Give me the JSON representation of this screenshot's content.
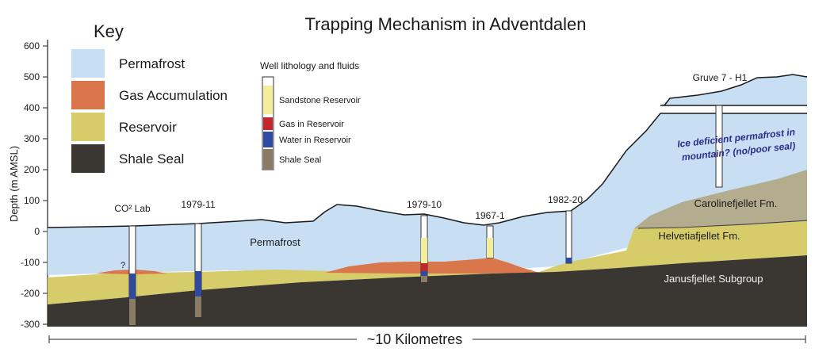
{
  "title": "Trapping Mechanism in Adventdalen",
  "y_axis": {
    "label": "Depth (m AMSL)",
    "ticks": [
      "600",
      "500",
      "400",
      "300",
      "200",
      "100",
      "0",
      "-100",
      "-200",
      "-300"
    ]
  },
  "key": {
    "heading": "Key",
    "items": [
      {
        "label": "Permafrost",
        "color": "#c8def3"
      },
      {
        "label": "Gas Accumulation",
        "color": "#d9764b"
      },
      {
        "label": "Reservoir",
        "color": "#d6cd6a"
      },
      {
        "label": "Shale Seal",
        "color": "#3a3632"
      }
    ]
  },
  "well_key": {
    "heading": "Well lithology and fluids",
    "items": [
      {
        "label": "Sandstone Reservoir",
        "color": "#f3ee9c"
      },
      {
        "label": "Gas in Reservoir",
        "color": "#c2272d"
      },
      {
        "label": "Water in Reservoir",
        "color": "#2f4aa0"
      },
      {
        "label": "Shale Seal",
        "color": "#8a7b66"
      }
    ]
  },
  "wells": [
    {
      "name": "CO² Lab"
    },
    {
      "name": "1979-11"
    },
    {
      "name": "1979-10"
    },
    {
      "name": "1967-1"
    },
    {
      "name": "1982-20"
    },
    {
      "name": "Gruve 7 - H1"
    }
  ],
  "labels": {
    "permafrost": "Permafrost",
    "question": "?",
    "ice_note_line1": "Ice deficient permafrost in",
    "ice_note_line2": "mountain? (no/poor seal)",
    "carolinefjellet": "Carolinefjellet Fm.",
    "helvetiafjellet": "Helvetiafjellet Fm.",
    "janusfjellet": "Janusfjellet Subgroup"
  },
  "scale": {
    "label": "~10 Kilometres"
  }
}
